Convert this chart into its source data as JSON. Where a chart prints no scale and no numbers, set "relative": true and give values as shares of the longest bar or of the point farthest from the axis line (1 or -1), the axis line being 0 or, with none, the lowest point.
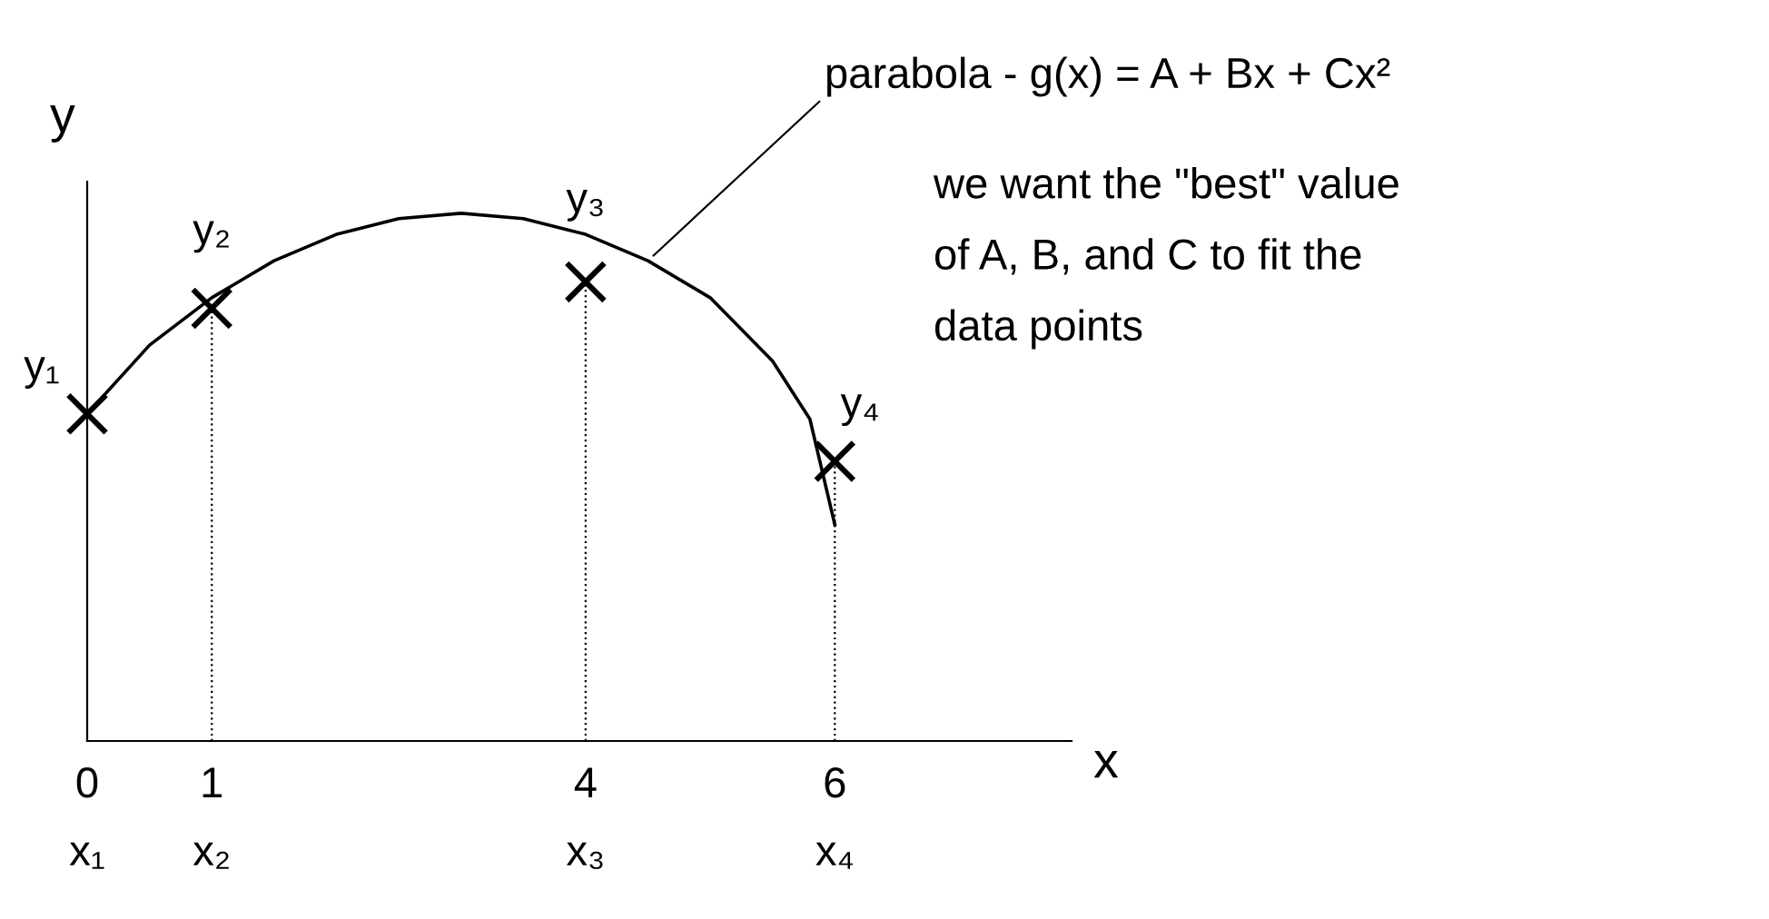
{
  "chart_data": {
    "type": "scatter",
    "relative": true,
    "xlabel": "x",
    "ylabel": "y",
    "xlim": [
      0,
      7.9
    ],
    "xticks": [
      {
        "value": 0,
        "label": "0\nx₁"
      },
      {
        "value": 1,
        "label": "1\nx₂"
      },
      {
        "value": 4,
        "label": "4\nx₃"
      },
      {
        "value": 6,
        "label": "6\nx₄"
      }
    ],
    "tick_labels": "x",
    "grid": false,
    "legend": false,
    "series": [
      {
        "marker": "cross",
        "color": "#000000",
        "x": [
          0,
          1,
          4,
          6
        ],
        "values": [
          0.62,
          0.82,
          0.87,
          0.53
        ]
      },
      {
        "type": "line",
        "marker": "none",
        "color": "#000000",
        "line_style": "solid",
        "x": [
          0,
          0.5,
          1,
          1.5,
          2,
          2.5,
          3,
          3.5,
          4,
          4.5,
          5,
          5.5,
          5.8,
          6
        ],
        "values": [
          0.62,
          0.75,
          0.84,
          0.91,
          0.96,
          0.99,
          1,
          0.99,
          0.96,
          0.91,
          0.84,
          0.72,
          0.61,
          0.41
        ]
      }
    ],
    "ref_lines": [
      {
        "axis": "x",
        "value": 1,
        "line_style": "dotted",
        "color": "#000000"
      },
      {
        "axis": "x",
        "value": 4,
        "line_style": "dotted",
        "color": "#000000"
      },
      {
        "axis": "x",
        "value": 6,
        "line_style": "dotted",
        "color": "#000000"
      }
    ],
    "annotations": [
      {
        "text": "y₁",
        "x": 0,
        "y": 0.62
      },
      {
        "text": "y₂",
        "x": 1,
        "y": 0.82
      },
      {
        "text": "y₃",
        "x": 4,
        "y": 0.87
      },
      {
        "text": "y₄",
        "x": 6,
        "y": 0.53
      },
      {
        "text": "parabola - g(x) = A + Bx + Cx²",
        "x": 4.5,
        "y": 0.91
      },
      "we want the \"best\" value\nof A, B, and C to fit the\ndata points"
    ]
  }
}
